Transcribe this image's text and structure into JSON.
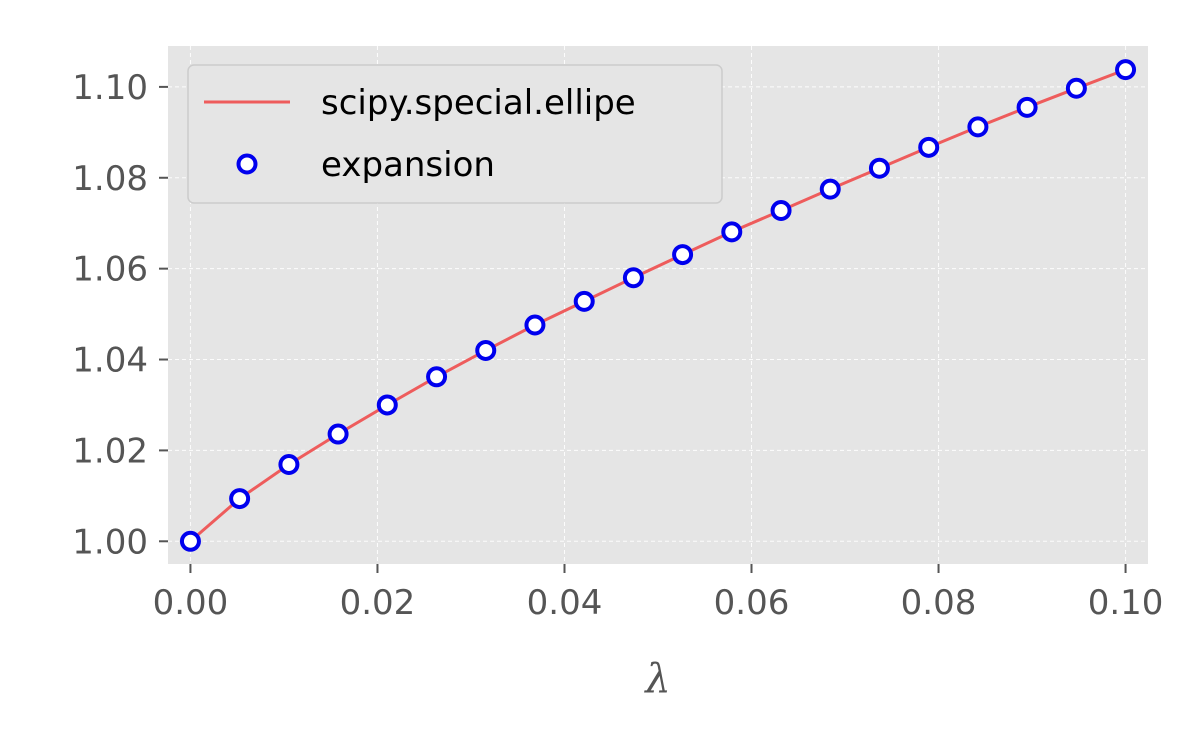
{
  "chart_data": {
    "type": "line",
    "xlabel": "λ",
    "ylabel": "",
    "xlim": [
      -0.0024,
      0.1024
    ],
    "ylim": [
      0.995,
      1.109
    ],
    "xticks": [
      0.0,
      0.02,
      0.04,
      0.06,
      0.08,
      0.1
    ],
    "xtick_labels": [
      "0.00",
      "0.02",
      "0.04",
      "0.06",
      "0.08",
      "0.10"
    ],
    "yticks": [
      1.0,
      1.02,
      1.04,
      1.06,
      1.08,
      1.1
    ],
    "ytick_labels": [
      "1.00",
      "1.02",
      "1.04",
      "1.06",
      "1.08",
      "1.10"
    ],
    "grid": true,
    "legend_position": "top-left",
    "series": [
      {
        "name": "scipy.special.ellipe",
        "style": "line",
        "color": "#ee5c5c",
        "x": [
          0.0,
          0.00526,
          0.01053,
          0.01579,
          0.02105,
          0.02632,
          0.03158,
          0.03684,
          0.04211,
          0.04737,
          0.05263,
          0.05789,
          0.06316,
          0.06842,
          0.07368,
          0.07895,
          0.08421,
          0.08947,
          0.09474,
          0.1
        ],
        "y": [
          1.0,
          1.0094,
          1.0169,
          1.0236,
          1.03,
          1.0362,
          1.042,
          1.0476,
          1.0528,
          1.058,
          1.0631,
          1.0681,
          1.0728,
          1.0775,
          1.0821,
          1.0867,
          1.0912,
          1.0955,
          1.0997,
          1.1038
        ]
      },
      {
        "name": "expansion",
        "style": "markers",
        "color": "#0000ee",
        "x": [
          0.0,
          0.00526,
          0.01053,
          0.01579,
          0.02105,
          0.02632,
          0.03158,
          0.03684,
          0.04211,
          0.04737,
          0.05263,
          0.05789,
          0.06316,
          0.06842,
          0.07368,
          0.07895,
          0.08421,
          0.08947,
          0.09474,
          0.1
        ],
        "y": [
          1.0,
          1.0094,
          1.0169,
          1.0236,
          1.03,
          1.0362,
          1.042,
          1.0476,
          1.0528,
          1.058,
          1.0631,
          1.0681,
          1.0728,
          1.0775,
          1.0821,
          1.0867,
          1.0912,
          1.0955,
          1.0997,
          1.1038
        ]
      }
    ],
    "colors": {
      "plot_background": "#e5e5e5",
      "grid": "#ffffff",
      "legend_background": "#e5e5e5",
      "legend_border": "#cccccc"
    }
  }
}
